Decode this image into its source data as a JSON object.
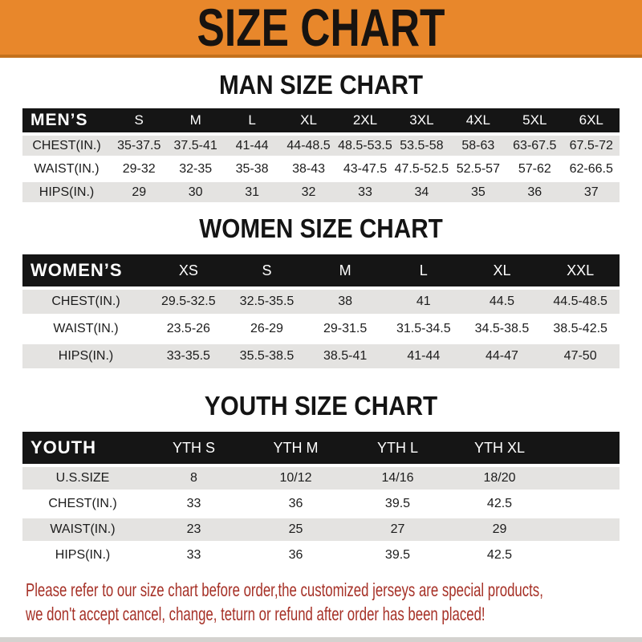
{
  "banner": {
    "title": "SIZE CHART"
  },
  "colors": {
    "banner_bg": "#E8872B",
    "banner_border": "#C4711C",
    "header_bar": "#151515",
    "row_stripe": "#E4E3E1",
    "notice_red": "#A63127"
  },
  "sections": [
    {
      "heading": "MAN SIZE CHART",
      "table": {
        "header_label": "MEN’S",
        "columns": [
          "S",
          "M",
          "L",
          "XL",
          "2XL",
          "3XL",
          "4XL",
          "5XL",
          "6XL"
        ],
        "rows": [
          {
            "label": "CHEST(IN.)",
            "values": [
              "35-37.5",
              "37.5-41",
              "41-44",
              "44-48.5",
              "48.5-53.5",
              "53.5-58",
              "58-63",
              "63-67.5",
              "67.5-72"
            ]
          },
          {
            "label": "WAIST(IN.)",
            "values": [
              "29-32",
              "32-35",
              "35-38",
              "38-43",
              "43-47.5",
              "47.5-52.5",
              "52.5-57",
              "57-62",
              "62-66.5"
            ]
          },
          {
            "label": "HIPS(IN.)",
            "values": [
              "29",
              "30",
              "31",
              "32",
              "33",
              "34",
              "35",
              "36",
              "37"
            ]
          }
        ]
      }
    },
    {
      "heading": "WOMEN SIZE CHART",
      "table": {
        "header_label": "WOMEN’S",
        "columns": [
          "XS",
          "S",
          "M",
          "L",
          "XL",
          "XXL"
        ],
        "rows": [
          {
            "label": "CHEST(IN.)",
            "values": [
              "29.5-32.5",
              "32.5-35.5",
              "38",
              "41",
              "44.5",
              "44.5-48.5"
            ]
          },
          {
            "label": "WAIST(IN.)",
            "values": [
              "23.5-26",
              "26-29",
              "29-31.5",
              "31.5-34.5",
              "34.5-38.5",
              "38.5-42.5"
            ]
          },
          {
            "label": "HIPS(IN.)",
            "values": [
              "33-35.5",
              "35.5-38.5",
              "38.5-41",
              "41-44",
              "44-47",
              "47-50"
            ]
          }
        ]
      }
    },
    {
      "heading": "YOUTH SIZE CHART",
      "table": {
        "header_label": "YOUTH",
        "columns": [
          "YTH S",
          "YTH M",
          "YTH L",
          "YTH XL"
        ],
        "rows": [
          {
            "label": "U.S.SIZE",
            "values": [
              "8",
              "10/12",
              "14/16",
              "18/20"
            ]
          },
          {
            "label": "CHEST(IN.)",
            "values": [
              "33",
              "36",
              "39.5",
              "42.5"
            ]
          },
          {
            "label": "WAIST(IN.)",
            "values": [
              "23",
              "25",
              "27",
              "29"
            ]
          },
          {
            "label": "HIPS(IN.)",
            "values": [
              "33",
              "36",
              "39.5",
              "42.5"
            ]
          }
        ]
      }
    }
  ],
  "footer": {
    "line1": "Please refer to our size chart before order,the customized jerseys are special products,",
    "line2": "we don't accept cancel, change, teturn or refund after order has been placed!"
  }
}
